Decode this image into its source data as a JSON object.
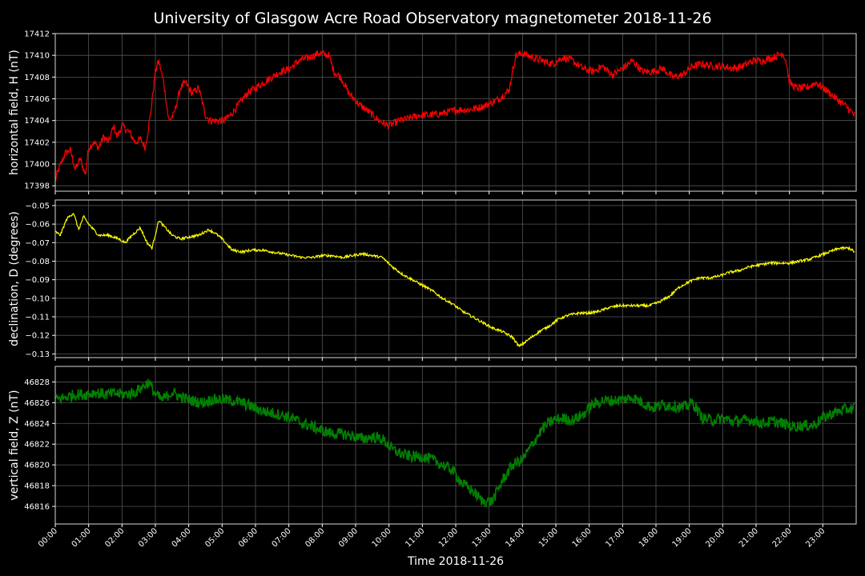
{
  "chart_data": {
    "type": "line",
    "title": "University of Glasgow Acre Road Observatory magnetometer 2018-11-26",
    "xlabel": "Time 2018-11-26",
    "x_range_hours": [
      0,
      24
    ],
    "x_ticks": [
      "00:00",
      "01:00",
      "02:00",
      "03:00",
      "04:00",
      "05:00",
      "06:00",
      "07:00",
      "08:00",
      "09:00",
      "10:00",
      "11:00",
      "12:00",
      "13:00",
      "14:00",
      "15:00",
      "16:00",
      "17:00",
      "18:00",
      "19:00",
      "20:00",
      "21:00",
      "22:00",
      "23:00"
    ],
    "grid": true,
    "background": "#000000",
    "panels": [
      {
        "id": "H",
        "ylabel": "horizontal field, H (nT)",
        "color": "#ff0000",
        "ylim": [
          17397.5,
          17412
        ],
        "yticks": [
          17398,
          17400,
          17402,
          17404,
          17406,
          17408,
          17410,
          17412
        ],
        "noise": 0.35,
        "series": {
          "x": [
            0,
            0.1,
            0.3,
            0.45,
            0.6,
            0.75,
            0.9,
            1.0,
            1.15,
            1.3,
            1.45,
            1.6,
            1.75,
            1.85,
            2.0,
            2.2,
            2.4,
            2.55,
            2.7,
            2.85,
            3.0,
            3.1,
            3.25,
            3.4,
            3.55,
            3.75,
            3.9,
            4.1,
            4.3,
            4.5,
            4.65,
            4.85,
            5.05,
            5.25,
            5.5,
            5.75,
            6.0,
            6.25,
            6.5,
            6.75,
            7.0,
            7.3,
            7.6,
            7.9,
            8.2,
            8.35,
            8.55,
            8.8,
            9.1,
            9.4,
            9.7,
            10.0,
            10.3,
            10.6,
            10.9,
            11.2,
            11.5,
            11.8,
            12.1,
            12.4,
            12.7,
            13.0,
            13.3,
            13.6,
            13.7,
            13.8,
            14.0,
            14.3,
            14.6,
            14.9,
            15.2,
            15.5,
            15.8,
            16.1,
            16.4,
            16.7,
            17.0,
            17.3,
            17.6,
            17.9,
            18.2,
            18.5,
            18.8,
            19.1,
            19.4,
            19.7,
            20.0,
            20.3,
            20.6,
            20.9,
            21.2,
            21.5,
            21.8,
            21.9,
            22.0,
            22.2,
            22.5,
            22.8,
            23.1,
            23.4,
            23.7,
            23.95
          ],
          "y": [
            17398.5,
            17399.5,
            17401.0,
            17401.3,
            17399.5,
            17400.5,
            17399.0,
            17401.5,
            17402.0,
            17401.5,
            17402.5,
            17402.0,
            17403.5,
            17402.5,
            17403.5,
            17403.0,
            17402.0,
            17402.3,
            17401.5,
            17404.5,
            17408.5,
            17409.5,
            17407.5,
            17404.0,
            17404.5,
            17407.0,
            17407.5,
            17406.5,
            17407.0,
            17404.5,
            17404.0,
            17404.0,
            17404.0,
            17404.5,
            17405.5,
            17406.5,
            17407.0,
            17407.5,
            17408.0,
            17408.5,
            17408.7,
            17409.5,
            17409.8,
            17410.2,
            17410.0,
            17408.5,
            17408.0,
            17406.5,
            17405.5,
            17404.8,
            17404.0,
            17403.5,
            17404.0,
            17404.2,
            17404.5,
            17404.5,
            17404.6,
            17404.8,
            17405.0,
            17405.0,
            17405.2,
            17405.5,
            17406.0,
            17406.8,
            17408.5,
            17410.0,
            17410.2,
            17409.8,
            17409.5,
            17409.2,
            17409.8,
            17409.5,
            17408.8,
            17408.5,
            17409.0,
            17408.2,
            17408.8,
            17409.5,
            17408.5,
            17408.5,
            17408.8,
            17408.0,
            17408.2,
            17409.0,
            17409.2,
            17409.0,
            17409.0,
            17408.8,
            17409.0,
            17409.5,
            17409.5,
            17409.8,
            17410.2,
            17409.5,
            17407.5,
            17407.0,
            17407.0,
            17407.5,
            17406.8,
            17406.0,
            17405.3,
            17404.5
          ]
        }
      },
      {
        "id": "D",
        "ylabel": "declination, D (degrees)",
        "color": "#ffff00",
        "ylim": [
          -0.132,
          -0.047
        ],
        "yticks": [
          -0.05,
          -0.06,
          -0.07,
          -0.08,
          -0.09,
          -0.1,
          -0.11,
          -0.12,
          -0.13
        ],
        "noise": 0.0007,
        "series": {
          "x": [
            0,
            0.15,
            0.35,
            0.55,
            0.7,
            0.85,
            1.0,
            1.3,
            1.6,
            1.9,
            2.1,
            2.3,
            2.55,
            2.75,
            2.9,
            3.1,
            3.3,
            3.5,
            3.75,
            4.0,
            4.3,
            4.6,
            4.8,
            5.0,
            5.3,
            5.6,
            5.9,
            6.2,
            6.5,
            6.8,
            7.1,
            7.4,
            7.7,
            8.0,
            8.3,
            8.6,
            8.9,
            9.2,
            9.5,
            9.8,
            10.1,
            10.4,
            10.7,
            11.0,
            11.3,
            11.6,
            11.9,
            12.2,
            12.5,
            12.8,
            13.1,
            13.4,
            13.7,
            13.9,
            14.2,
            14.5,
            14.8,
            15.1,
            15.4,
            15.7,
            16.0,
            16.3,
            16.6,
            16.9,
            17.2,
            17.5,
            17.8,
            18.1,
            18.4,
            18.7,
            19.0,
            19.3,
            19.6,
            19.9,
            20.2,
            20.5,
            20.8,
            21.1,
            21.4,
            21.7,
            22.0,
            22.3,
            22.6,
            22.9,
            23.2,
            23.5,
            23.8,
            23.95
          ],
          "y": [
            -0.064,
            -0.066,
            -0.057,
            -0.054,
            -0.063,
            -0.056,
            -0.06,
            -0.066,
            -0.066,
            -0.068,
            -0.07,
            -0.066,
            -0.062,
            -0.07,
            -0.073,
            -0.058,
            -0.062,
            -0.066,
            -0.068,
            -0.067,
            -0.066,
            -0.063,
            -0.065,
            -0.068,
            -0.074,
            -0.075,
            -0.074,
            -0.074,
            -0.075,
            -0.076,
            -0.077,
            -0.078,
            -0.078,
            -0.077,
            -0.077,
            -0.078,
            -0.077,
            -0.076,
            -0.077,
            -0.078,
            -0.083,
            -0.087,
            -0.09,
            -0.093,
            -0.096,
            -0.1,
            -0.103,
            -0.107,
            -0.11,
            -0.113,
            -0.116,
            -0.118,
            -0.121,
            -0.126,
            -0.122,
            -0.118,
            -0.115,
            -0.111,
            -0.109,
            -0.108,
            -0.108,
            -0.107,
            -0.105,
            -0.104,
            -0.104,
            -0.104,
            -0.104,
            -0.102,
            -0.099,
            -0.094,
            -0.091,
            -0.089,
            -0.089,
            -0.088,
            -0.086,
            -0.085,
            -0.083,
            -0.082,
            -0.081,
            -0.081,
            -0.081,
            -0.08,
            -0.079,
            -0.077,
            -0.075,
            -0.073,
            -0.073,
            -0.075
          ]
        }
      },
      {
        "id": "Z",
        "ylabel": "vertical field, Z (nT)",
        "color": "#008000",
        "ylim": [
          46814.3,
          46829.5
        ],
        "yticks": [
          46816,
          46818,
          46820,
          46822,
          46824,
          46826,
          46828
        ],
        "noise": 0.55,
        "series": {
          "x": [
            0,
            0.3,
            0.6,
            0.9,
            1.2,
            1.5,
            1.8,
            2.1,
            2.4,
            2.6,
            2.8,
            3.0,
            3.2,
            3.5,
            3.8,
            4.1,
            4.4,
            4.7,
            5.0,
            5.3,
            5.6,
            5.9,
            6.2,
            6.5,
            6.8,
            7.1,
            7.4,
            7.7,
            8.0,
            8.3,
            8.6,
            8.9,
            9.2,
            9.5,
            9.8,
            10.1,
            10.4,
            10.7,
            11.0,
            11.3,
            11.6,
            11.9,
            12.2,
            12.5,
            12.8,
            13.1,
            13.4,
            13.7,
            14.0,
            14.3,
            14.6,
            14.9,
            15.2,
            15.5,
            15.8,
            16.1,
            16.4,
            16.7,
            17.0,
            17.3,
            17.6,
            17.9,
            18.2,
            18.5,
            18.8,
            19.1,
            19.4,
            19.7,
            20.0,
            20.3,
            20.6,
            20.9,
            21.2,
            21.5,
            21.8,
            22.1,
            22.4,
            22.7,
            23.0,
            23.3,
            23.6,
            23.95
          ],
          "y": [
            46826.3,
            46826.5,
            46826.8,
            46826.8,
            46827.0,
            46826.8,
            46826.9,
            46826.8,
            46827.0,
            46827.5,
            46828.0,
            46826.8,
            46826.3,
            46827.0,
            46826.5,
            46826.2,
            46826.0,
            46826.3,
            46826.3,
            46826.2,
            46826.0,
            46825.6,
            46825.2,
            46825.0,
            46824.8,
            46824.5,
            46824.0,
            46823.7,
            46823.3,
            46823.0,
            46823.0,
            46822.8,
            46822.5,
            46822.7,
            46822.5,
            46821.5,
            46821.0,
            46820.8,
            46820.8,
            46820.5,
            46820.0,
            46819.5,
            46818.2,
            46817.5,
            46816.5,
            46816.5,
            46818.5,
            46820.0,
            46820.5,
            46822.0,
            46823.5,
            46824.3,
            46824.5,
            46824.3,
            46824.8,
            46825.8,
            46826.2,
            46826.2,
            46826.3,
            46826.5,
            46826.0,
            46825.5,
            46825.8,
            46825.7,
            46825.5,
            46826.0,
            46824.5,
            46824.3,
            46824.5,
            46824.2,
            46824.3,
            46824.3,
            46824.0,
            46824.2,
            46824.0,
            46823.7,
            46823.8,
            46823.8,
            46824.5,
            46825.0,
            46825.3,
            46825.5
          ]
        }
      }
    ]
  }
}
